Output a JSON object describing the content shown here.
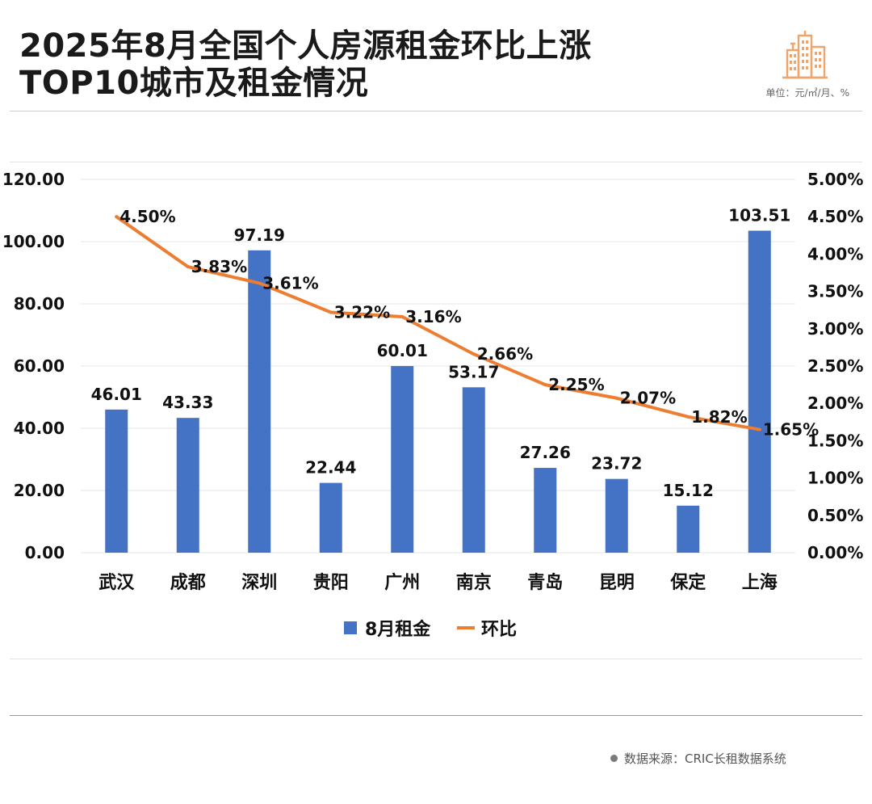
{
  "header": {
    "title_line1": "2025年8月全国个人房源租金环比上涨",
    "title_line2": "TOP10城市及租金情况",
    "unit": "单位：元/㎡/月、%",
    "logo_icon": "city-buildings-icon"
  },
  "footer": {
    "source": "数据来源：CRIC长租数据系统"
  },
  "colors": {
    "bar": "#4472C4",
    "line": "#ED7D31",
    "grid": "#e6e6e6"
  },
  "chart_data": {
    "type": "bar",
    "title": "2025年8月全国个人房源租金环比上涨TOP10城市及租金情况",
    "categories": [
      "武汉",
      "成都",
      "深圳",
      "贵阳",
      "广州",
      "南京",
      "青岛",
      "昆明",
      "保定",
      "上海"
    ],
    "series": [
      {
        "name": "8月租金",
        "type": "bar",
        "axis": "left",
        "values": [
          46.01,
          43.33,
          97.19,
          22.44,
          60.01,
          53.17,
          27.26,
          23.72,
          15.12,
          103.51
        ],
        "labels": [
          "46.01",
          "43.33",
          "97.19",
          "22.44",
          "60.01",
          "53.17",
          "27.26",
          "23.72",
          "15.12",
          "103.51"
        ]
      },
      {
        "name": "环比",
        "type": "line",
        "axis": "right",
        "values": [
          4.5,
          3.83,
          3.61,
          3.22,
          3.16,
          2.66,
          2.25,
          2.07,
          1.82,
          1.65
        ],
        "labels": [
          "4.50%",
          "3.83%",
          "3.61%",
          "3.22%",
          "3.16%",
          "2.66%",
          "2.25%",
          "2.07%",
          "1.82%",
          "1.65%"
        ]
      }
    ],
    "y_left": {
      "min": 0,
      "max": 120,
      "step": 20,
      "ticks": [
        "0.00",
        "20.00",
        "40.00",
        "60.00",
        "80.00",
        "100.00",
        "120.00"
      ]
    },
    "y_right": {
      "min": 0,
      "max": 5,
      "step": 0.5,
      "ticks": [
        "0.00%",
        "0.50%",
        "1.00%",
        "1.50%",
        "2.00%",
        "2.50%",
        "3.00%",
        "3.50%",
        "4.00%",
        "4.50%",
        "5.00%"
      ]
    },
    "legend": [
      "8月租金",
      "环比"
    ],
    "legend_position": "bottom",
    "grid": true
  }
}
